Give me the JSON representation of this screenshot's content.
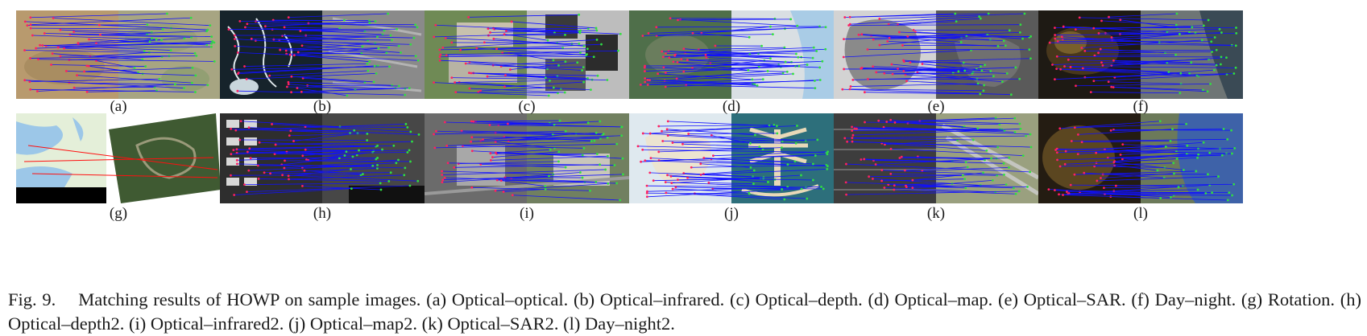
{
  "figure": {
    "number_label": "Fig. 9.",
    "caption_text": "Matching results of HOWP on sample images. (a) Optical–optical. (b) Optical–infrared. (c) Optical–depth. (d) Optical–map. (e) Optical–SAR. (f) Day–night. (g) Rotation. (h) Optical–depth2. (i) Optical–infrared2. (j) Optical–map2. (k) Optical–SAR2. (l) Day–night2."
  },
  "panels": [
    {
      "label": "(a)",
      "description": "Optical–optical"
    },
    {
      "label": "(b)",
      "description": "Optical–infrared"
    },
    {
      "label": "(c)",
      "description": "Optical–depth"
    },
    {
      "label": "(d)",
      "description": "Optical–map"
    },
    {
      "label": "(e)",
      "description": "Optical–SAR"
    },
    {
      "label": "(f)",
      "description": "Day–night"
    },
    {
      "label": "(g)",
      "description": "Rotation"
    },
    {
      "label": "(h)",
      "description": "Optical–depth2"
    },
    {
      "label": "(i)",
      "description": "Optical–infrared2"
    },
    {
      "label": "(j)",
      "description": "Optical–map2"
    },
    {
      "label": "(k)",
      "description": "Optical–SAR2"
    },
    {
      "label": "(l)",
      "description": "Day–night2"
    }
  ],
  "colors": {
    "match_line": "#1010ff",
    "left_keypoint": "#ff2060",
    "right_keypoint": "#30e040",
    "outlier_line": "#ff1010"
  }
}
